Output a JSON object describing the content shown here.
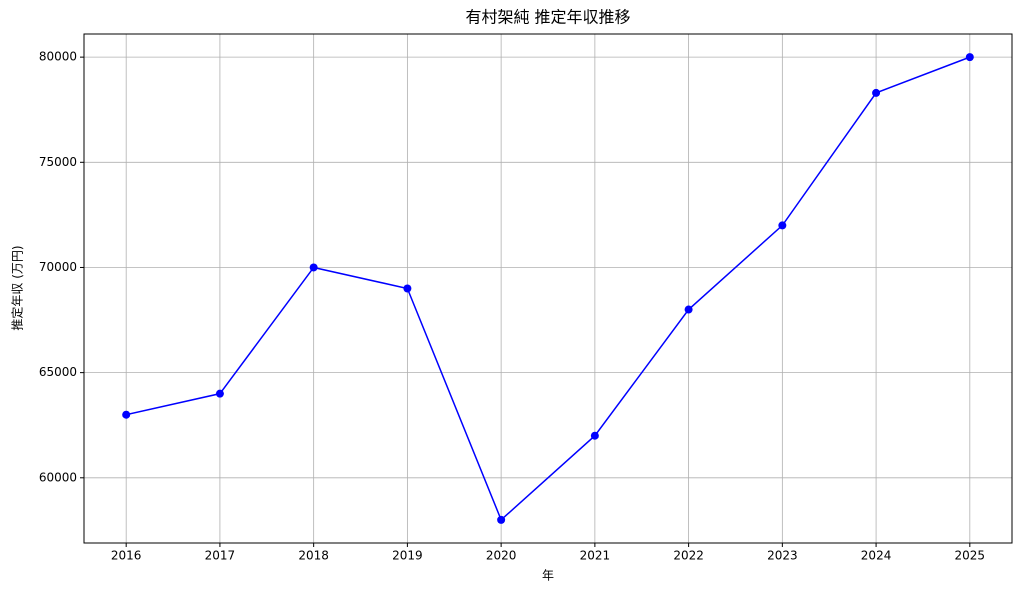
{
  "chart_data": {
    "type": "line",
    "title": "有村架純 推定年収推移",
    "xlabel": "年",
    "ylabel": "推定年収 (万円)",
    "x": [
      2016,
      2017,
      2018,
      2019,
      2020,
      2021,
      2022,
      2023,
      2024,
      2025
    ],
    "series": [
      {
        "color": "#0000ff",
        "values": [
          63000,
          64000,
          70000,
          69000,
          58000,
          62000,
          68000,
          72000,
          78300,
          80000
        ]
      }
    ],
    "xlim": [
      2015.55,
      2025.45
    ],
    "xticks": [
      2016,
      2017,
      2018,
      2019,
      2020,
      2021,
      2022,
      2023,
      2024,
      2025
    ],
    "ylim": [
      56900,
      81100
    ],
    "yticks": [
      60000,
      65000,
      70000,
      75000,
      80000
    ],
    "grid": true
  }
}
